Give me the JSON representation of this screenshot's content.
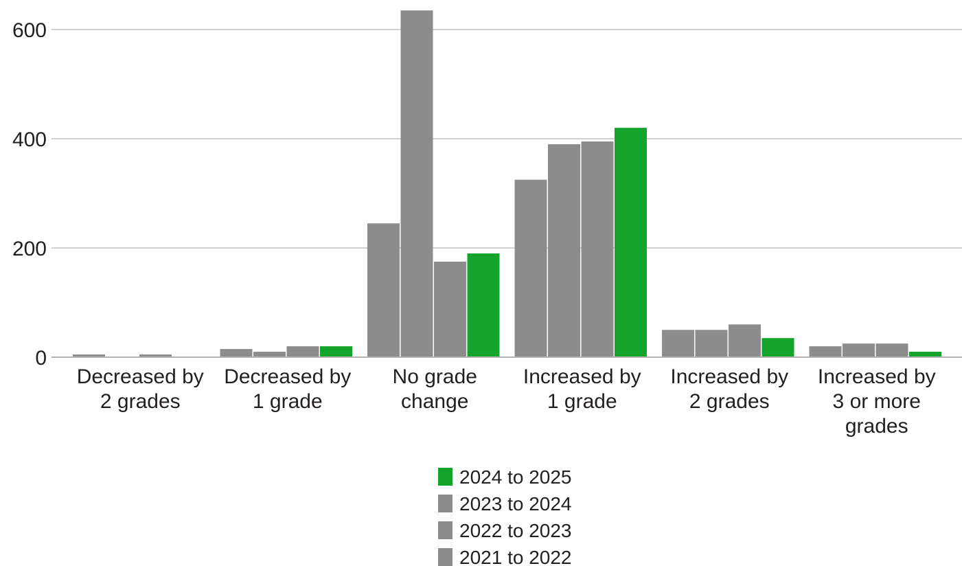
{
  "chart_data": {
    "type": "bar",
    "title": "",
    "xlabel": "",
    "ylabel": "",
    "ylim": [
      0,
      600
    ],
    "yticks": [
      0,
      200,
      400,
      600
    ],
    "grid": true,
    "legend_position": "bottom",
    "categories": [
      [
        "Decreased by",
        "2 grades"
      ],
      [
        "Decreased by",
        "1 grade"
      ],
      [
        "No grade",
        "change"
      ],
      [
        "Increased by",
        "1 grade"
      ],
      [
        "Increased by",
        "2 grades"
      ],
      [
        "Increased by",
        "3 or more",
        "grades"
      ]
    ],
    "series": [
      {
        "name": "2021 to 2022",
        "color": "#8c8c8c",
        "values": [
          5,
          15,
          245,
          325,
          50,
          20
        ]
      },
      {
        "name": "2022 to 2023",
        "color": "#8c8c8c",
        "values": [
          0,
          10,
          635,
          390,
          50,
          25
        ]
      },
      {
        "name": "2023 to 2024",
        "color": "#8c8c8c",
        "values": [
          5,
          20,
          175,
          395,
          60,
          25
        ]
      },
      {
        "name": "2024 to 2025",
        "color": "#15a42b",
        "values": [
          0,
          20,
          190,
          420,
          35,
          10
        ]
      }
    ],
    "legend_order": [
      "2024 to 2025",
      "2023 to 2024",
      "2022 to 2023",
      "2021 to 2022"
    ]
  }
}
